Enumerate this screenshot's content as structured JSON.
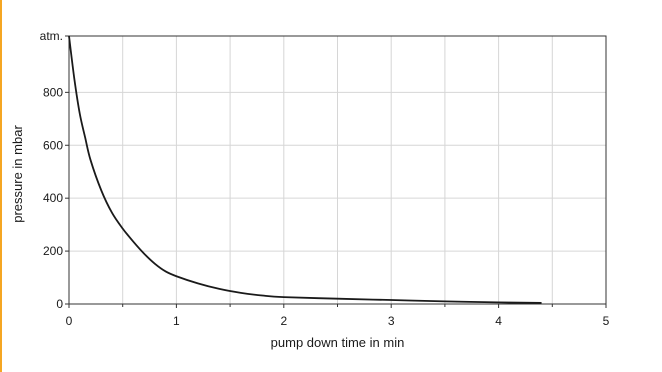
{
  "accent_color": "#F5A623",
  "chart_data": {
    "type": "line",
    "title": "",
    "xlabel": "pump down time in min",
    "ylabel": "pressure in mbar",
    "xlim": [
      0,
      5
    ],
    "ylim": [
      0,
      1013
    ],
    "x_ticks": [
      0,
      1,
      2,
      3,
      4,
      5
    ],
    "x_tick_labels": [
      "0",
      "1",
      "2",
      "3",
      "4",
      "5"
    ],
    "y_ticks": [
      0,
      200,
      400,
      600,
      800,
      1013
    ],
    "y_tick_labels": [
      "0",
      "200",
      "400",
      "600",
      "800",
      "atm."
    ],
    "x_minor_gridlines": [
      0.5,
      1.5,
      2.5,
      3.5,
      4.5
    ],
    "grid": true,
    "line_color": "#1a1a1a",
    "series": [
      {
        "x": [
          0,
          0.05,
          0.1,
          0.15,
          0.2,
          0.3,
          0.4,
          0.5,
          0.6,
          0.7,
          0.8,
          0.9,
          1.0,
          1.2,
          1.4,
          1.6,
          1.8,
          2.0,
          2.5,
          3.0,
          3.5,
          4.0,
          4.4
        ],
        "y": [
          1013,
          850,
          720,
          630,
          545,
          430,
          345,
          285,
          235,
          190,
          152,
          123,
          105,
          78,
          57,
          42,
          32,
          26,
          20,
          15,
          10,
          6,
          4
        ]
      }
    ]
  }
}
